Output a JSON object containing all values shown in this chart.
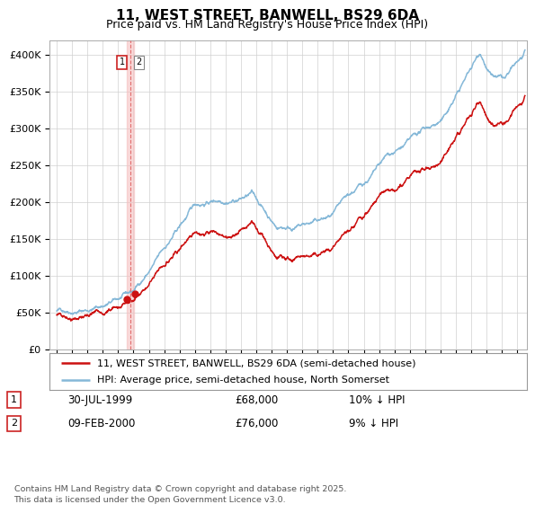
{
  "title": "11, WEST STREET, BANWELL, BS29 6DA",
  "subtitle": "Price paid vs. HM Land Registry's House Price Index (HPI)",
  "legend_line1": "11, WEST STREET, BANWELL, BS29 6DA (semi-detached house)",
  "legend_line2": "HPI: Average price, semi-detached house, North Somerset",
  "annotation1_label": "1",
  "annotation1_date": "30-JUL-1999",
  "annotation1_price": "£68,000",
  "annotation1_hpi": "10% ↓ HPI",
  "annotation2_label": "2",
  "annotation2_date": "09-FEB-2000",
  "annotation2_price": "£76,000",
  "annotation2_hpi": "9% ↓ HPI",
  "sale1_year": 1999.57,
  "sale1_price": 68000,
  "sale2_year": 2000.11,
  "sale2_price": 76000,
  "footer": "Contains HM Land Registry data © Crown copyright and database right 2025.\nThis data is licensed under the Open Government Licence v3.0.",
  "hpi_color": "#85b8d8",
  "price_color": "#cc1111",
  "vline_color": "#f5c0c0",
  "vline_x": 1999.8,
  "ylim_min": 0,
  "ylim_max": 420000,
  "xlim_min": 1994.5,
  "xlim_max": 2025.6,
  "background_color": "#ffffff"
}
